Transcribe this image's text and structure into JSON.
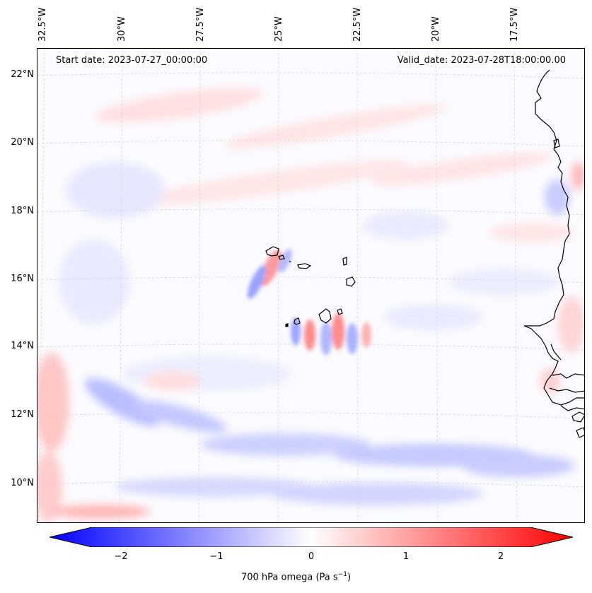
{
  "header": {
    "start_date": "Start date: 2023-07-27_00:00:00",
    "valid_date": "Valid_date: 2023-07-28T18:00:00.00"
  },
  "longitude_labels": [
    "32.5°W",
    "30°W",
    "27.5°W",
    "25°W",
    "22.5°W",
    "20°W",
    "17.5°W"
  ],
  "latitude_labels": [
    "22°N",
    "20°N",
    "18°N",
    "16°N",
    "14°N",
    "12°N",
    "10°N"
  ],
  "colorbar": {
    "ticks": [
      "−2",
      "−1",
      "0",
      "1",
      "2"
    ],
    "label": "700 hPa omega (Pa s",
    "label_sup": "−1",
    "label_end": ")",
    "min": -2.5,
    "max": 2.5,
    "low_color": "#0000ff",
    "mid_color": "#ffffff",
    "high_color": "#ff0000"
  },
  "map_features": [
    "cape-verde-islands",
    "west-african-coastline"
  ]
}
